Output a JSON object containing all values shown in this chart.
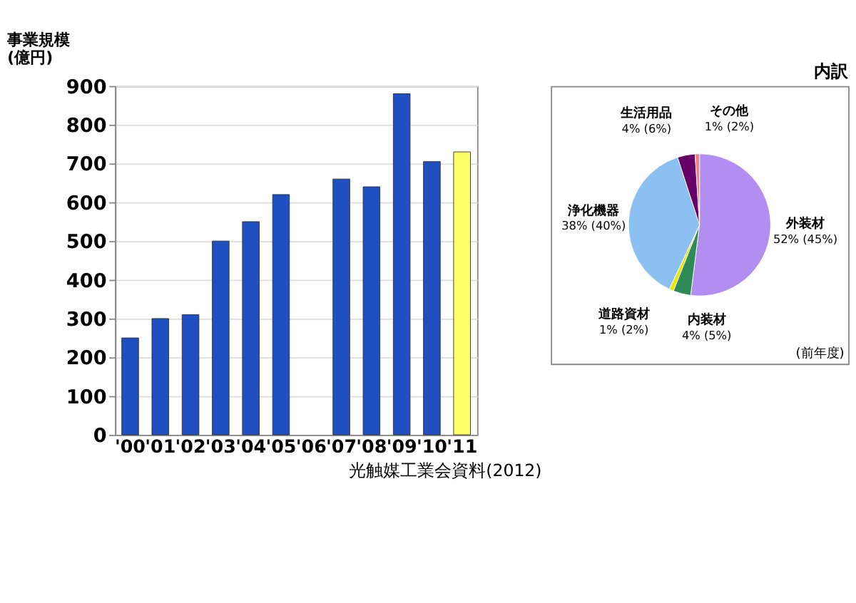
{
  "chart_data": [
    {
      "type": "bar",
      "ylabel": "事業規模\n(億円)",
      "categories": [
        "'00",
        "'01",
        "'02",
        "'03",
        "'04",
        "'05",
        "'06",
        "'07",
        "'08",
        "'09",
        "'10",
        "'11"
      ],
      "values": [
        250,
        300,
        310,
        500,
        550,
        620,
        null,
        660,
        640,
        880,
        705,
        730
      ],
      "colors": [
        "#1f4fc0",
        "#1f4fc0",
        "#1f4fc0",
        "#1f4fc0",
        "#1f4fc0",
        "#1f4fc0",
        "#1f4fc0",
        "#1f4fc0",
        "#1f4fc0",
        "#1f4fc0",
        "#1f4fc0",
        "#ffff66"
      ],
      "ylim": [
        0,
        900
      ],
      "yticks": [
        0,
        100,
        200,
        300,
        400,
        500,
        600,
        700,
        800,
        900
      ],
      "grid": "y",
      "annotations": [
        "光触媒工業会資料(2012)"
      ]
    },
    {
      "type": "pie",
      "title": "内訳",
      "categories": [
        "外装材",
        "内装材",
        "道路資材",
        "浄化機器",
        "生活用品",
        "その他"
      ],
      "values": [
        52,
        4,
        1,
        38,
        4,
        1
      ],
      "value_labels": [
        "52% (45%)",
        "4% (5%)",
        "1% (2%)",
        "38% (40%)",
        "4% (6%)",
        "1% (2%)"
      ],
      "colors": [
        "#b28ef0",
        "#2e8b57",
        "#e8e800",
        "#8cc0f0",
        "#660066",
        "#f08080"
      ],
      "annotations": [
        "(前年度)"
      ]
    }
  ]
}
